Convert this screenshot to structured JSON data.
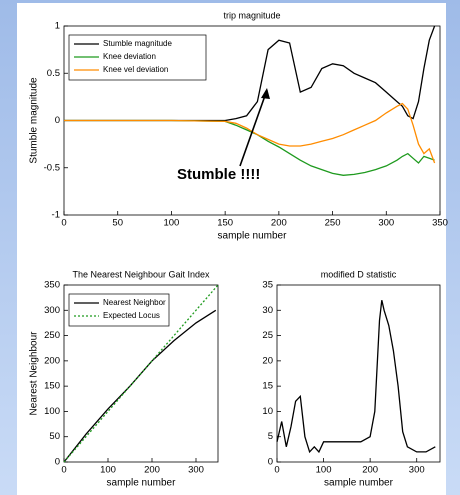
{
  "chart_data": [
    {
      "type": "line",
      "title": "trip magnitude",
      "xlabel": "sample number",
      "ylabel": "Stumble magnitude",
      "xlim": [
        0,
        350
      ],
      "xticks": [
        0,
        50,
        100,
        150,
        200,
        250,
        300,
        350
      ],
      "ylim": [
        -1,
        1
      ],
      "yticks": [
        -1,
        -0.5,
        0,
        0.5,
        1
      ],
      "legend": "upper left",
      "grid": false,
      "annotation": "Stumble !!!!",
      "series": [
        {
          "name": "Stumble magnitude",
          "color": "#000000",
          "style": "solid",
          "x": [
            0,
            50,
            100,
            150,
            160,
            170,
            180,
            190,
            200,
            210,
            220,
            230,
            240,
            250,
            260,
            270,
            280,
            290,
            300,
            310,
            315,
            320,
            325,
            330,
            335,
            340,
            345
          ],
          "values": [
            0,
            0,
            0,
            0,
            0.02,
            0.05,
            0.2,
            0.75,
            0.85,
            0.82,
            0.3,
            0.35,
            0.55,
            0.6,
            0.58,
            0.5,
            0.45,
            0.4,
            0.3,
            0.2,
            0.15,
            0.05,
            0.02,
            0.2,
            0.55,
            0.85,
            1.0
          ]
        },
        {
          "name": "Knee deviation",
          "color": "#1e9a1e",
          "style": "solid",
          "x": [
            0,
            50,
            100,
            150,
            160,
            170,
            180,
            190,
            200,
            210,
            220,
            230,
            240,
            250,
            260,
            270,
            280,
            290,
            300,
            310,
            315,
            320,
            325,
            330,
            335,
            340,
            345
          ],
          "values": [
            0,
            0,
            0,
            -0.01,
            -0.05,
            -0.1,
            -0.15,
            -0.22,
            -0.28,
            -0.35,
            -0.42,
            -0.48,
            -0.52,
            -0.56,
            -0.58,
            -0.57,
            -0.55,
            -0.52,
            -0.48,
            -0.42,
            -0.38,
            -0.35,
            -0.4,
            -0.45,
            -0.38,
            -0.4,
            -0.42
          ]
        },
        {
          "name": "Knee vel deviation",
          "color": "#ff8c00",
          "style": "solid",
          "x": [
            0,
            50,
            100,
            150,
            160,
            170,
            180,
            190,
            200,
            210,
            220,
            230,
            240,
            250,
            260,
            270,
            280,
            290,
            300,
            310,
            315,
            320,
            325,
            330,
            335,
            340,
            345
          ],
          "values": [
            0,
            0,
            0,
            -0.01,
            -0.03,
            -0.08,
            -0.15,
            -0.2,
            -0.25,
            -0.27,
            -0.27,
            -0.25,
            -0.22,
            -0.19,
            -0.15,
            -0.1,
            -0.05,
            0,
            0.08,
            0.15,
            0.18,
            0.12,
            -0.05,
            -0.25,
            -0.35,
            -0.3,
            -0.45
          ]
        }
      ]
    },
    {
      "type": "line",
      "title": "The Nearest Neighbour Gait Index",
      "xlabel": "sample number",
      "ylabel": "Nearest Neighbour",
      "xlim": [
        0,
        350
      ],
      "xticks": [
        0,
        100,
        200,
        300
      ],
      "ylim": [
        0,
        350
      ],
      "yticks": [
        0,
        50,
        100,
        150,
        200,
        250,
        300,
        350
      ],
      "legend": "upper left",
      "grid": false,
      "series": [
        {
          "name": "Nearest Neighbor",
          "color": "#000000",
          "style": "solid",
          "x": [
            0,
            20,
            50,
            100,
            150,
            200,
            250,
            300,
            345
          ],
          "values": [
            0,
            22,
            55,
            105,
            150,
            200,
            240,
            275,
            300
          ]
        },
        {
          "name": "Expected Locus",
          "color": "#1e9a1e",
          "style": "dotted",
          "x": [
            0,
            350
          ],
          "values": [
            0,
            350
          ]
        }
      ]
    },
    {
      "type": "line",
      "title": "modified D statistic",
      "xlabel": "sample number",
      "xlim": [
        0,
        350
      ],
      "xticks": [
        0,
        100,
        200,
        300
      ],
      "ylim": [
        0,
        35
      ],
      "yticks": [
        0,
        5,
        10,
        15,
        20,
        25,
        30,
        35
      ],
      "grid": false,
      "series": [
        {
          "color": "#000000",
          "style": "solid",
          "x": [
            0,
            10,
            20,
            30,
            40,
            50,
            60,
            70,
            80,
            90,
            100,
            120,
            150,
            180,
            200,
            210,
            220,
            225,
            230,
            240,
            250,
            260,
            270,
            280,
            300,
            320,
            340
          ],
          "values": [
            4,
            8,
            3,
            7,
            12,
            13,
            5,
            2,
            3,
            2,
            4,
            4,
            4,
            4,
            5,
            10,
            28,
            32,
            30,
            27,
            22,
            15,
            6,
            3,
            2,
            2,
            3
          ]
        }
      ]
    }
  ]
}
